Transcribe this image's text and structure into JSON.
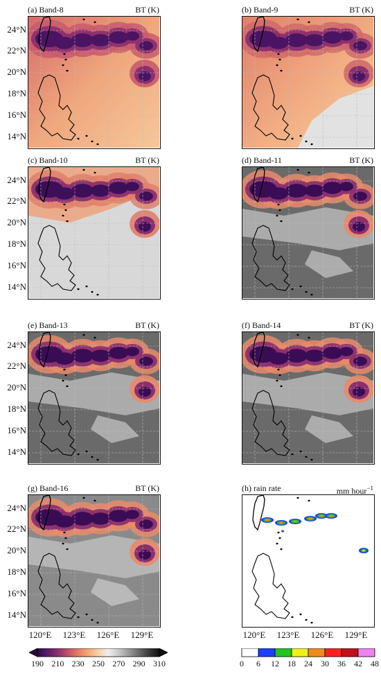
{
  "panels": [
    {
      "label": "(a) Band-8",
      "unit": "BT (K)",
      "style": "band8"
    },
    {
      "label": "(b) Band-9",
      "unit": "BT (K)",
      "style": "band9"
    },
    {
      "label": "(c) Band-10",
      "unit": "BT (K)",
      "style": "band10"
    },
    {
      "label": "(d) Band-11",
      "unit": "BT (K)",
      "style": "ir"
    },
    {
      "label": "(e) Band-13",
      "unit": "BT (K)",
      "style": "ir"
    },
    {
      "label": "(f) Band-14",
      "unit": "BT (K)",
      "style": "ir"
    },
    {
      "label": "(g) Band-16",
      "unit": "BT (K)",
      "style": "band16"
    },
    {
      "label": "(h) rain rate",
      "unit": "mm hour",
      "unit_sup": "−1",
      "style": "rain"
    }
  ],
  "lat_ticks": [
    "24°N",
    "22°N",
    "20°N",
    "18°N",
    "16°N",
    "14°N"
  ],
  "lon_ticks": [
    "120°E",
    "123°E",
    "126°E",
    "129°E"
  ],
  "bt_colorbar": {
    "ticks": [
      "190",
      "210",
      "230",
      "250",
      "270",
      "290",
      "310"
    ],
    "colors": [
      "#2a0a3f",
      "#5a1a6a",
      "#8c2f6e",
      "#c2506a",
      "#e67b64",
      "#f2aa78",
      "#f5d3a6",
      "#eeeeee",
      "#c8c8c8",
      "#9a9a9a",
      "#6a6a6a",
      "#3a3a3a",
      "#111111"
    ]
  },
  "rain_colorbar": {
    "ticks": [
      "0",
      "6",
      "12",
      "18",
      "24",
      "30",
      "36",
      "42",
      "48"
    ],
    "colors": [
      "#ffffff",
      "#1f3fff",
      "#22c322",
      "#f0f01a",
      "#f08a1a",
      "#ff2020",
      "#c0101a",
      "#ee82ee"
    ]
  }
}
